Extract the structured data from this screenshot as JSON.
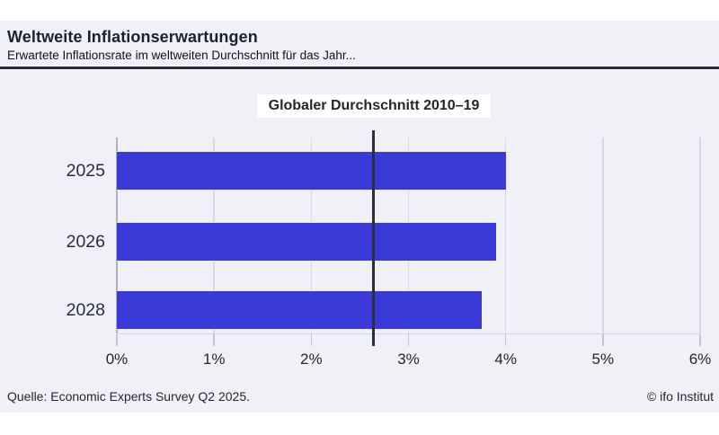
{
  "header": {
    "title": "Weltweite Inflationserwartungen",
    "subtitle": "Erwartete Inflationsrate im weltweiten Durchschnitt für das Jahr..."
  },
  "chart_data": {
    "type": "bar",
    "orientation": "horizontal",
    "title": "Weltweite Inflationserwartungen",
    "subtitle": "Erwartete Inflationsrate im weltweiten Durchschnitt für das Jahr...",
    "categories": [
      "2025",
      "2026",
      "2028"
    ],
    "values": [
      4.0,
      3.9,
      3.75
    ],
    "unit": "%",
    "xlim": [
      0,
      6
    ],
    "x_ticks": [
      {
        "value": 0,
        "label": "0%"
      },
      {
        "value": 1,
        "label": "1%"
      },
      {
        "value": 2,
        "label": "2%"
      },
      {
        "value": 3,
        "label": "3%"
      },
      {
        "value": 4,
        "label": "4%"
      },
      {
        "value": 5,
        "label": "5%"
      },
      {
        "value": 6,
        "label": "6%"
      }
    ],
    "grid": "vertical",
    "legend_position": "none",
    "reference_line": {
      "label": "Globaler Durchschnitt 2010–19",
      "value": 2.64
    },
    "colors": {
      "bar": "#3a3ad6",
      "reference_line": "#2b2f36",
      "card_background": "#eff1f6",
      "divider": "#2a2e34"
    }
  },
  "footer": {
    "source": "Quelle: Economic Experts Survey Q2 2025.",
    "copyright": "© ifo Institut"
  }
}
